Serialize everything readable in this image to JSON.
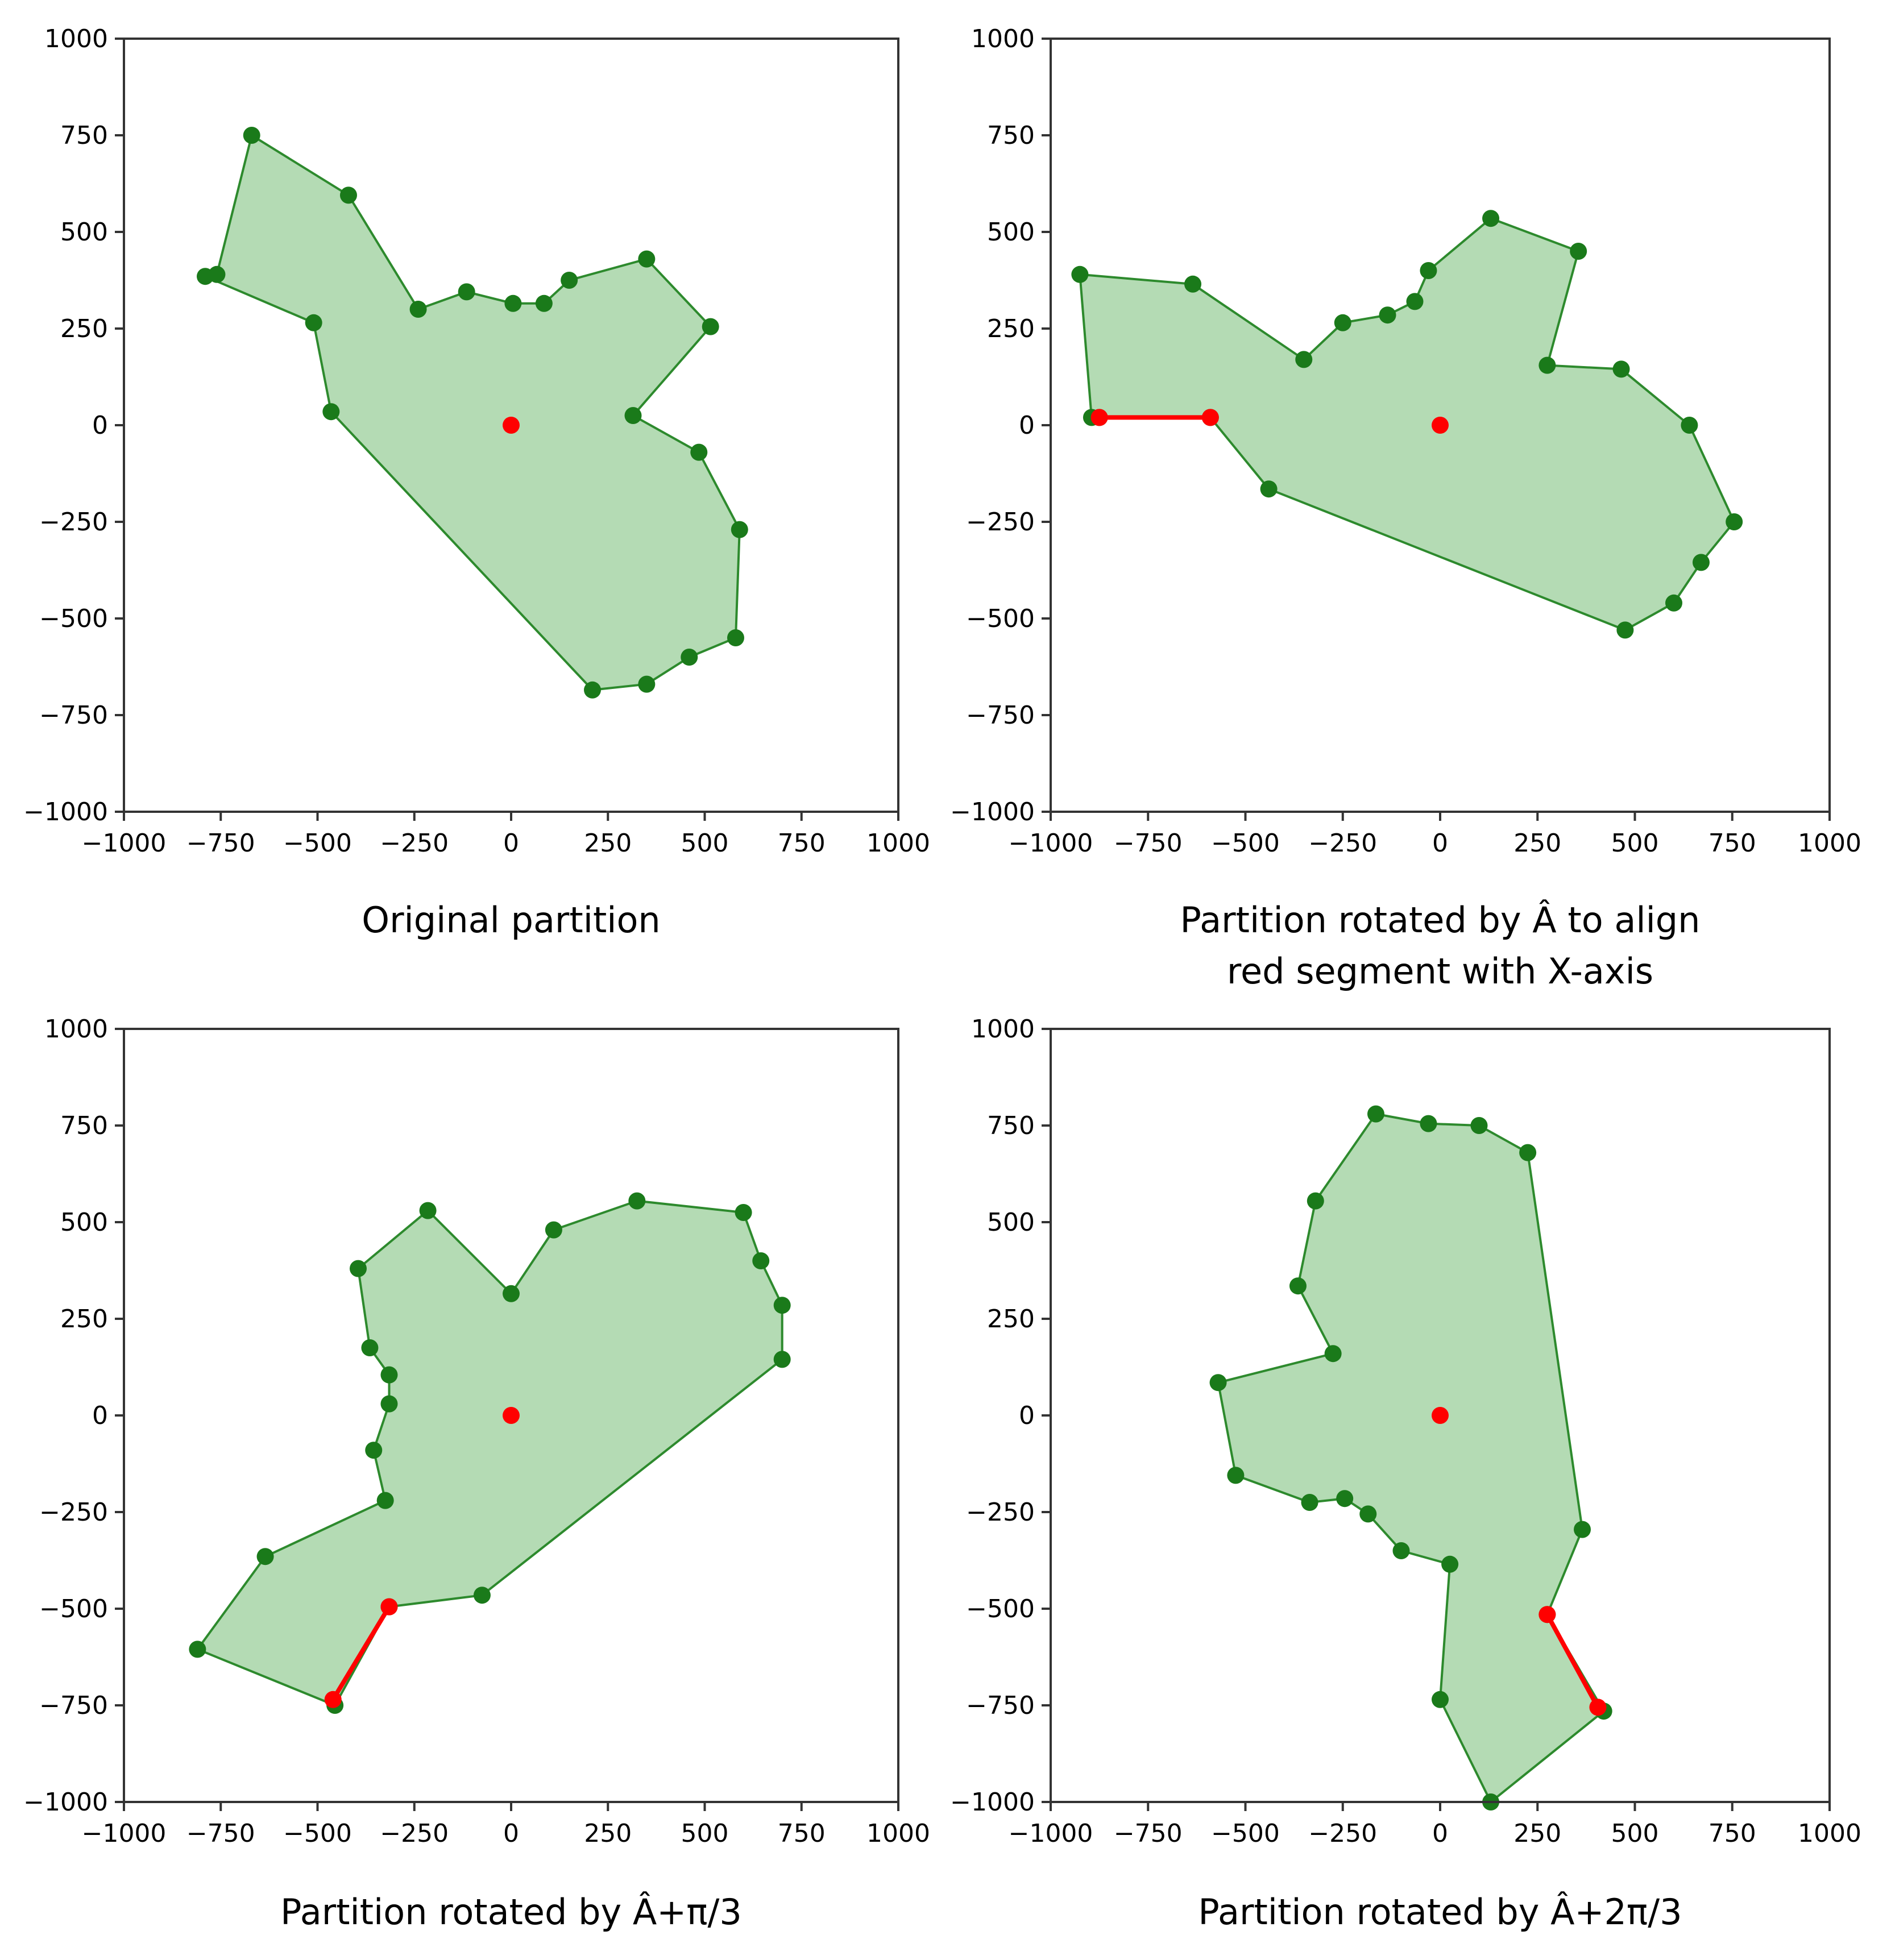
{
  "chart_data": [
    {
      "type": "scatter",
      "title": "Original partition",
      "xlim": [
        -1000,
        1000
      ],
      "ylim": [
        -1000,
        1000
      ],
      "x_ticks": [
        -1000,
        -750,
        -500,
        -250,
        0,
        250,
        500,
        750,
        1000
      ],
      "y_ticks": [
        -1000,
        -750,
        -500,
        -250,
        0,
        250,
        500,
        750,
        1000
      ],
      "polygon": [
        [
          -670,
          750
        ],
        [
          -420,
          595
        ],
        [
          -240,
          300
        ],
        [
          -115,
          345
        ],
        [
          5,
          315
        ],
        [
          85,
          315
        ],
        [
          150,
          375
        ],
        [
          350,
          430
        ],
        [
          515,
          255
        ],
        [
          315,
          25
        ],
        [
          485,
          -70
        ],
        [
          590,
          -270
        ],
        [
          580,
          -550
        ],
        [
          460,
          -600
        ],
        [
          350,
          -670
        ],
        [
          210,
          -685
        ],
        [
          -465,
          35
        ],
        [
          -510,
          265
        ],
        [
          -790,
          385
        ],
        [
          -760,
          390
        ]
      ],
      "centroid": [
        0,
        0
      ],
      "red_segment": null
    },
    {
      "type": "scatter",
      "title": "Partition rotated by Â to align red segment with X-axis",
      "title_lines": [
        "Partition rotated by Â to align",
        "red segment with X-axis"
      ],
      "xlim": [
        -1000,
        1000
      ],
      "ylim": [
        -1000,
        1000
      ],
      "x_ticks": [
        -1000,
        -750,
        -500,
        -250,
        0,
        250,
        500,
        750,
        1000
      ],
      "y_ticks": [
        -1000,
        -750,
        -500,
        -250,
        0,
        250,
        500,
        750,
        1000
      ],
      "polygon": [
        [
          -925,
          390
        ],
        [
          -635,
          365
        ],
        [
          -350,
          170
        ],
        [
          -250,
          265
        ],
        [
          -135,
          285
        ],
        [
          -65,
          320
        ],
        [
          -30,
          400
        ],
        [
          130,
          535
        ],
        [
          355,
          450
        ],
        [
          275,
          155
        ],
        [
          465,
          145
        ],
        [
          640,
          0
        ],
        [
          755,
          -250
        ],
        [
          670,
          -355
        ],
        [
          600,
          -460
        ],
        [
          475,
          -530
        ],
        [
          -440,
          -165
        ],
        [
          -590,
          20
        ],
        [
          -875,
          20
        ],
        [
          -895,
          20
        ]
      ],
      "centroid": [
        0,
        0
      ],
      "red_segment": [
        [
          -875,
          20
        ],
        [
          -590,
          20
        ]
      ]
    },
    {
      "type": "scatter",
      "title": "Partition rotated by Â+π/3",
      "xlim": [
        -1000,
        1000
      ],
      "ylim": [
        -1000,
        1000
      ],
      "x_ticks": [
        -1000,
        -750,
        -500,
        -250,
        0,
        250,
        500,
        750,
        1000
      ],
      "y_ticks": [
        -1000,
        -750,
        -500,
        -250,
        0,
        250,
        500,
        750,
        1000
      ],
      "polygon": [
        [
          -395,
          380
        ],
        [
          -215,
          530
        ],
        [
          0,
          315
        ],
        [
          110,
          480
        ],
        [
          325,
          555
        ],
        [
          600,
          525
        ],
        [
          645,
          400
        ],
        [
          700,
          285
        ],
        [
          700,
          145
        ],
        [
          -75,
          -465
        ],
        [
          -315,
          -495
        ],
        [
          -455,
          -750
        ],
        [
          -810,
          -605
        ],
        [
          -635,
          -365
        ],
        [
          -325,
          -220
        ],
        [
          -355,
          -90
        ],
        [
          -315,
          30
        ],
        [
          -315,
          105
        ],
        [
          -365,
          175
        ]
      ],
      "centroid": [
        0,
        0
      ],
      "red_segment": [
        [
          -315,
          -495
        ],
        [
          -460,
          -735
        ]
      ]
    },
    {
      "type": "scatter",
      "title": "Partition rotated by Â+2π/3",
      "xlim": [
        -1000,
        1000
      ],
      "ylim": [
        -1000,
        1000
      ],
      "x_ticks": [
        -1000,
        -750,
        -500,
        -250,
        0,
        250,
        500,
        750,
        1000
      ],
      "y_ticks": [
        -1000,
        -750,
        -500,
        -250,
        0,
        250,
        500,
        750,
        1000
      ],
      "polygon": [
        [
          -165,
          780
        ],
        [
          -30,
          755
        ],
        [
          100,
          750
        ],
        [
          225,
          680
        ],
        [
          365,
          -295
        ],
        [
          275,
          -515
        ],
        [
          420,
          -765
        ],
        [
          130,
          -1000
        ],
        [
          0,
          -735
        ],
        [
          25,
          -385
        ],
        [
          -100,
          -350
        ],
        [
          -185,
          -255
        ],
        [
          -245,
          -215
        ],
        [
          -335,
          -225
        ],
        [
          -525,
          -155
        ],
        [
          -570,
          85
        ],
        [
          -275,
          160
        ],
        [
          -365,
          335
        ],
        [
          -320,
          555
        ]
      ],
      "centroid": [
        0,
        0
      ],
      "red_segment": [
        [
          275,
          -515
        ],
        [
          405,
          -755
        ]
      ]
    }
  ]
}
